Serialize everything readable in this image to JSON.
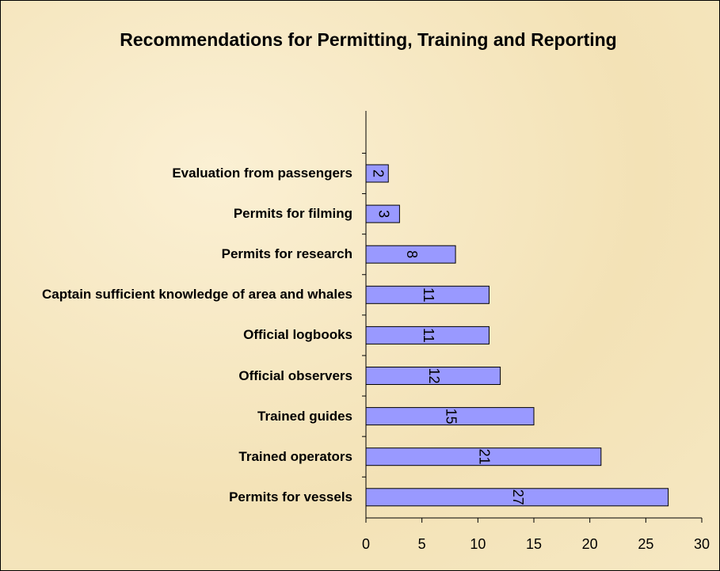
{
  "chart_data": {
    "type": "bar",
    "orientation": "horizontal",
    "title": "Recommendations for Permitting, Training and Reporting",
    "categories": [
      "Evaluation from passengers",
      "Permits for filming",
      "Permits for research",
      "Captain sufficient knowledge of area and whales",
      "Official logbooks",
      "Official observers",
      "Trained guides",
      "Trained operators",
      "Permits for vessels"
    ],
    "values": [
      2,
      3,
      8,
      11,
      11,
      12,
      15,
      21,
      27
    ],
    "color": "#9999ff",
    "xlim": [
      0,
      30
    ],
    "xticks": [
      0,
      5,
      10,
      15,
      20,
      25,
      30
    ]
  }
}
